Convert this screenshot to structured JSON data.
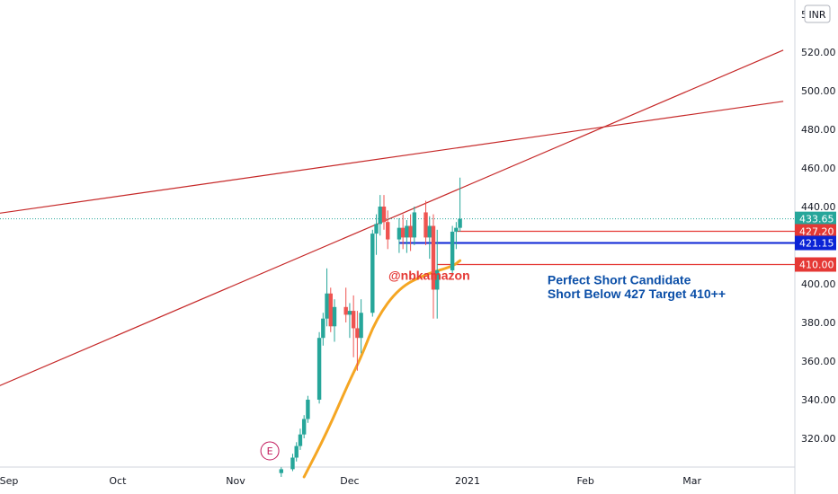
{
  "currency": "INR",
  "currency_prefix": "5",
  "chart_data": {
    "type": "candlestick",
    "x_ticks": [
      "Sep",
      "Oct",
      "Nov",
      "Dec",
      "2021",
      "Feb",
      "Mar"
    ],
    "y_ticks": [
      "320.00",
      "340.00",
      "360.00",
      "380.00",
      "400.00",
      "440.00",
      "460.00",
      "480.00",
      "500.00",
      "520.00"
    ],
    "ylim": [
      300,
      545
    ],
    "grid": false,
    "candles": [
      {
        "date": "2020-11-13",
        "o": 302,
        "h": 305,
        "l": 300,
        "c": 304
      },
      {
        "date": "2020-11-16",
        "o": 304,
        "h": 312,
        "l": 303,
        "c": 310
      },
      {
        "date": "2020-11-17",
        "o": 310,
        "h": 318,
        "l": 308,
        "c": 316
      },
      {
        "date": "2020-11-18",
        "o": 316,
        "h": 325,
        "l": 314,
        "c": 322
      },
      {
        "date": "2020-11-19",
        "o": 322,
        "h": 332,
        "l": 320,
        "c": 330
      },
      {
        "date": "2020-11-20",
        "o": 330,
        "h": 342,
        "l": 328,
        "c": 340
      },
      {
        "date": "2020-11-23",
        "o": 340,
        "h": 375,
        "l": 338,
        "c": 372
      },
      {
        "date": "2020-11-24",
        "o": 372,
        "h": 385,
        "l": 368,
        "c": 382
      },
      {
        "date": "2020-11-25",
        "o": 382,
        "h": 408,
        "l": 378,
        "c": 395
      },
      {
        "date": "2020-11-26",
        "o": 395,
        "h": 398,
        "l": 375,
        "c": 378
      },
      {
        "date": "2020-11-27",
        "o": 378,
        "h": 392,
        "l": 370,
        "c": 388
      },
      {
        "date": "2020-11-30",
        "o": 388,
        "h": 398,
        "l": 380,
        "c": 384
      },
      {
        "date": "2020-12-01",
        "o": 384,
        "h": 390,
        "l": 372,
        "c": 386
      },
      {
        "date": "2020-12-02",
        "o": 386,
        "h": 394,
        "l": 362,
        "c": 377
      },
      {
        "date": "2020-12-03",
        "o": 377,
        "h": 386,
        "l": 355,
        "c": 372
      },
      {
        "date": "2020-12-04",
        "o": 372,
        "h": 392,
        "l": 364,
        "c": 385
      },
      {
        "date": "2020-12-07",
        "o": 385,
        "h": 428,
        "l": 383,
        "c": 426
      },
      {
        "date": "2020-12-08",
        "o": 426,
        "h": 436,
        "l": 415,
        "c": 431
      },
      {
        "date": "2020-12-09",
        "o": 431,
        "h": 446,
        "l": 425,
        "c": 440
      },
      {
        "date": "2020-12-10",
        "o": 440,
        "h": 446,
        "l": 428,
        "c": 432
      },
      {
        "date": "2020-12-11",
        "o": 432,
        "h": 438,
        "l": 418,
        "c": 423
      },
      {
        "date": "2020-12-14",
        "o": 423,
        "h": 434,
        "l": 416,
        "c": 429
      },
      {
        "date": "2020-12-15",
        "o": 429,
        "h": 436,
        "l": 418,
        "c": 424
      },
      {
        "date": "2020-12-16",
        "o": 424,
        "h": 433,
        "l": 416,
        "c": 430
      },
      {
        "date": "2020-12-17",
        "o": 430,
        "h": 436,
        "l": 417,
        "c": 424
      },
      {
        "date": "2020-12-18",
        "o": 424,
        "h": 440,
        "l": 420,
        "c": 437
      },
      {
        "date": "2020-12-21",
        "o": 437,
        "h": 443,
        "l": 420,
        "c": 424
      },
      {
        "date": "2020-12-22",
        "o": 424,
        "h": 435,
        "l": 413,
        "c": 430
      },
      {
        "date": "2020-12-23",
        "o": 430,
        "h": 436,
        "l": 382,
        "c": 397
      },
      {
        "date": "2020-12-24",
        "o": 397,
        "h": 428,
        "l": 382,
        "c": 407
      },
      {
        "date": "2020-12-28",
        "o": 407,
        "h": 430,
        "l": 405,
        "c": 427
      },
      {
        "date": "2020-12-29",
        "o": 427,
        "h": 432,
        "l": 418,
        "c": 429
      },
      {
        "date": "2020-12-30",
        "o": 429,
        "h": 455,
        "l": 427,
        "c": 433.65
      }
    ],
    "moving_average": {
      "color": "#f5a623",
      "points": [
        {
          "date": "2020-11-19",
          "v": 300
        },
        {
          "date": "2020-11-25",
          "v": 323
        },
        {
          "date": "2020-12-01",
          "v": 350
        },
        {
          "date": "2020-12-04",
          "v": 362
        },
        {
          "date": "2020-12-08",
          "v": 382
        },
        {
          "date": "2020-12-14",
          "v": 398
        },
        {
          "date": "2020-12-21",
          "v": 405
        },
        {
          "date": "2020-12-28",
          "v": 409
        },
        {
          "date": "2020-12-30",
          "v": 412
        }
      ]
    },
    "trendlines": [
      {
        "from": {
          "date": "2020-08-20",
          "v": 433.5
        },
        "to": {
          "date": "2021-03-25",
          "v": 494.5
        },
        "color": "#c62828"
      },
      {
        "from": {
          "date": "2020-08-20",
          "v": 338
        },
        "to": {
          "date": "2021-03-25",
          "v": 521
        },
        "color": "#c62828"
      }
    ],
    "levels": [
      {
        "value": 427.2,
        "label": "427.20",
        "color": "#e53935",
        "from": "2020-12-29"
      },
      {
        "value": 421.15,
        "label": "421.15",
        "color": "#0b24d6",
        "from": "2020-12-14"
      },
      {
        "value": 410.0,
        "label": "410.00",
        "color": "#e53935",
        "from": "2020-12-24"
      }
    ],
    "last_price": {
      "value": 433.65,
      "label": "433.65",
      "color": "#26a69a"
    },
    "annotations": [
      {
        "text": "Perfect Short Candidate",
        "date": "2021-01-22",
        "v": 402
      },
      {
        "text": "Short Below 427 Target 410++",
        "date": "2021-01-22",
        "v": 395
      }
    ],
    "watermark": "@nbkamazon",
    "earnings_marker": {
      "label": "E",
      "date": "2020-11-10"
    }
  }
}
